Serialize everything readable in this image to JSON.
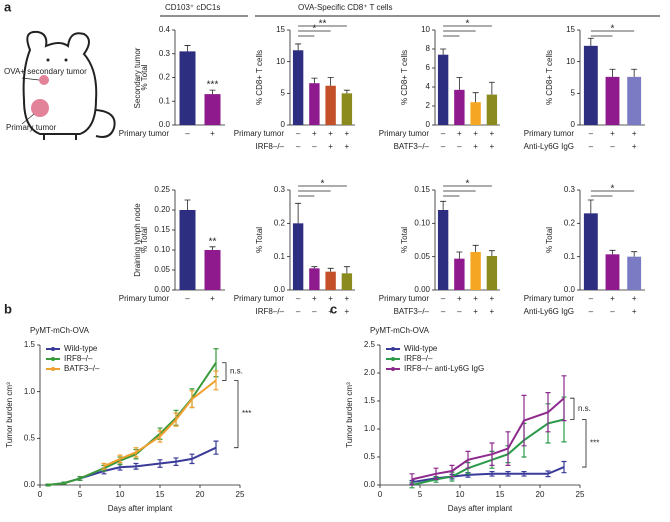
{
  "panel_labels": [
    "a",
    "b",
    "c"
  ],
  "headers": [
    "CD103⁺ cDC1s",
    "OVA-Specific CD8⁺ T cells"
  ],
  "row_labels": [
    "Secondary tumor",
    "Draining lymph node"
  ],
  "mouse": {
    "secondary": "OVA+ secondary tumor",
    "primary": "Primary tumor"
  },
  "chart_data": [
    {
      "type": "bar",
      "ylabel": "% Total",
      "ylim": [
        0,
        0.4
      ],
      "yticks": [
        {
          "value": 0,
          "label": "0.0"
        },
        0.1,
        0.2,
        0.3,
        0.4
      ],
      "values": [
        0.31,
        0.13
      ],
      "errors": [
        0.025,
        0.017
      ],
      "colors": [
        "#2e2e80",
        "#8e1a8e"
      ],
      "conditions": [
        {
          "label": "Primary tumor",
          "values": [
            "–",
            "+"
          ]
        }
      ],
      "significance": [
        "***"
      ]
    },
    {
      "type": "bar",
      "ylabel": "% CD8+ T cells",
      "ylim": [
        0,
        15
      ],
      "yticks": [
        0,
        5,
        10,
        15
      ],
      "values": [
        11.8,
        6.6,
        6.2,
        5.0
      ],
      "errors": [
        1.0,
        0.8,
        1.3,
        0.5
      ],
      "colors": [
        "#2e2e80",
        "#8e1a8e",
        "#c4502a",
        "#8a8a1e"
      ],
      "conditions": [
        {
          "label": "Primary tumor",
          "values": [
            "–",
            "+",
            "+",
            "+"
          ]
        },
        {
          "label": "IRF8–/–",
          "values": [
            "–",
            "–",
            "+",
            "+"
          ]
        }
      ],
      "significance": [
        "*",
        "**"
      ]
    },
    {
      "type": "bar",
      "ylabel": "% CD8+ T cells",
      "ylim": [
        0,
        10
      ],
      "yticks": [
        0,
        2,
        4,
        6,
        8,
        10
      ],
      "values": [
        7.4,
        3.7,
        2.4,
        3.2
      ],
      "errors": [
        0.6,
        1.3,
        1.0,
        1.3
      ],
      "colors": [
        "#2e2e80",
        "#8e1a8e",
        "#f5a623",
        "#8a8a1e"
      ],
      "conditions": [
        {
          "label": "Primary tumor",
          "values": [
            "–",
            "+",
            "+",
            "+"
          ]
        },
        {
          "label": "BATF3–/–",
          "values": [
            "–",
            "–",
            "+",
            "+"
          ]
        }
      ],
      "significance": [
        "*"
      ]
    },
    {
      "type": "bar",
      "ylabel": "% CD8+ T cells",
      "ylim": [
        0,
        15
      ],
      "yticks": [
        0,
        5,
        10,
        15
      ],
      "values": [
        12.5,
        7.6,
        7.6
      ],
      "errors": [
        1.2,
        1.2,
        1.2
      ],
      "colors": [
        "#2e2e80",
        "#8e1a8e",
        "#7b7bc4"
      ],
      "conditions": [
        {
          "label": "Primary tumor",
          "values": [
            "–",
            "+",
            "+"
          ]
        },
        {
          "label": "Anti-Ly6G IgG",
          "values": [
            "–",
            "–",
            "+"
          ]
        }
      ],
      "significance": [
        "*"
      ]
    },
    {
      "type": "bar",
      "ylabel": "% Total",
      "ylim": [
        0,
        0.25
      ],
      "yticks": [
        {
          "value": 0,
          "label": "0.00"
        },
        {
          "value": 0.05,
          "label": "0.05"
        },
        {
          "value": 0.1,
          "label": "0.10"
        },
        {
          "value": 0.15,
          "label": "0.15"
        },
        {
          "value": 0.2,
          "label": "0.20"
        },
        {
          "value": 0.25,
          "label": "0.25"
        }
      ],
      "values": [
        0.2,
        0.1
      ],
      "errors": [
        0.025,
        0.008
      ],
      "colors": [
        "#2e2e80",
        "#8e1a8e"
      ],
      "conditions": [
        {
          "label": "Primary tumor",
          "values": [
            "–",
            "+"
          ]
        }
      ],
      "significance": [
        "**"
      ]
    },
    {
      "type": "bar",
      "ylabel": "% Total",
      "ylim": [
        0,
        0.3
      ],
      "yticks": [
        {
          "value": 0,
          "label": "0.0"
        },
        0.1,
        0.2,
        0.3
      ],
      "values": [
        0.2,
        0.065,
        0.055,
        0.05
      ],
      "errors": [
        0.06,
        0.005,
        0.01,
        0.02
      ],
      "colors": [
        "#2e2e80",
        "#8e1a8e",
        "#c4502a",
        "#8a8a1e"
      ],
      "conditions": [
        {
          "label": "Primary tumor",
          "values": [
            "–",
            "+",
            "+",
            "+"
          ]
        },
        {
          "label": "IRF8–/–",
          "values": [
            "–",
            "–",
            "+",
            "+"
          ]
        }
      ],
      "significance": [
        "*"
      ]
    },
    {
      "type": "bar",
      "ylabel": "% Total",
      "ylim": [
        0,
        0.15
      ],
      "yticks": [
        {
          "value": 0,
          "label": "0.00"
        },
        {
          "value": 0.05,
          "label": "0.05"
        },
        {
          "value": 0.1,
          "label": "0.10"
        },
        {
          "value": 0.15,
          "label": "0.15"
        }
      ],
      "values": [
        0.12,
        0.047,
        0.057,
        0.051
      ],
      "errors": [
        0.013,
        0.01,
        0.01,
        0.008
      ],
      "colors": [
        "#2e2e80",
        "#8e1a8e",
        "#f5a623",
        "#8a8a1e"
      ],
      "conditions": [
        {
          "label": "Primary tumor",
          "values": [
            "–",
            "+",
            "+",
            "+"
          ]
        },
        {
          "label": "BATF3–/–",
          "values": [
            "–",
            "–",
            "+",
            "+"
          ]
        }
      ],
      "significance": [
        "*"
      ]
    },
    {
      "type": "bar",
      "ylabel": "% Total",
      "ylim": [
        0,
        0.3
      ],
      "yticks": [
        {
          "value": 0,
          "label": "0.0"
        },
        0.1,
        0.2,
        0.3
      ],
      "values": [
        0.23,
        0.107,
        0.1
      ],
      "errors": [
        0.04,
        0.012,
        0.015
      ],
      "colors": [
        "#2e2e80",
        "#8e1a8e",
        "#7b7bc4"
      ],
      "conditions": [
        {
          "label": "Primary tumor",
          "values": [
            "–",
            "+",
            "+"
          ]
        },
        {
          "label": "Anti-Ly6G IgG",
          "values": [
            "–",
            "–",
            "+"
          ]
        }
      ],
      "significance": [
        "*"
      ]
    },
    {
      "type": "line",
      "subtitle": "PyMT-mCh-OVA",
      "xlabel": "Days after implant",
      "ylabel": "Tumor burden cm³",
      "xlim": [
        0,
        25
      ],
      "xticks": [
        0,
        5,
        10,
        15,
        20,
        25
      ],
      "ylim": [
        0,
        1.5
      ],
      "yticks": [
        {
          "value": 0,
          "label": "0.0"
        },
        0.5,
        {
          "value": 1,
          "label": "1.0"
        },
        1.5
      ],
      "series": [
        {
          "name": "Wild-type",
          "color": "#3a3a9a",
          "x": [
            1,
            3,
            5,
            8,
            10,
            12,
            15,
            17,
            19,
            22
          ],
          "values": [
            0,
            0.02,
            0.07,
            0.15,
            0.19,
            0.2,
            0.23,
            0.25,
            0.28,
            0.4
          ],
          "errors": [
            0.01,
            0.01,
            0.02,
            0.03,
            0.03,
            0.03,
            0.04,
            0.04,
            0.05,
            0.07
          ]
        },
        {
          "name": "IRF8–/–",
          "color": "#3a9a3a",
          "x": [
            1,
            3,
            5,
            8,
            10,
            12,
            15,
            17,
            19,
            22
          ],
          "values": [
            0,
            0.02,
            0.07,
            0.18,
            0.26,
            0.33,
            0.55,
            0.72,
            0.93,
            1.31
          ],
          "errors": [
            0.01,
            0.01,
            0.02,
            0.03,
            0.04,
            0.05,
            0.06,
            0.08,
            0.1,
            0.15
          ]
        },
        {
          "name": "BATF3–/–",
          "color": "#f0a030",
          "x": [
            8,
            10,
            12,
            15,
            17,
            19,
            22
          ],
          "values": [
            0.2,
            0.28,
            0.35,
            0.52,
            0.7,
            0.92,
            1.12
          ],
          "errors": [
            0.03,
            0.04,
            0.05,
            0.06,
            0.07,
            0.09,
            0.1
          ]
        }
      ],
      "annotations": [
        "n.s.",
        "***"
      ]
    },
    {
      "type": "line",
      "subtitle": "PyMT-mCh-OVA",
      "xlabel": "Days after implant",
      "ylabel": "Tumor burden cm³",
      "xlim": [
        0,
        25
      ],
      "xticks": [
        0,
        5,
        10,
        15,
        20,
        25
      ],
      "ylim": [
        0,
        2.5
      ],
      "yticks": [
        {
          "value": 0,
          "label": "0.0"
        },
        0.5,
        {
          "value": 1,
          "label": "1.0"
        },
        1.5,
        {
          "value": 2,
          "label": "2.0"
        },
        2.5
      ],
      "series": [
        {
          "name": "Wild-type",
          "color": "#3a3a9a",
          "x": [
            4,
            7,
            9,
            11,
            14,
            16,
            18,
            21,
            23
          ],
          "values": [
            0.05,
            0.12,
            0.15,
            0.18,
            0.2,
            0.2,
            0.2,
            0.2,
            0.32
          ],
          "errors": [
            0.03,
            0.03,
            0.04,
            0.04,
            0.04,
            0.04,
            0.04,
            0.05,
            0.1
          ]
        },
        {
          "name": "IRF8–/–",
          "color": "#2a9a4a",
          "x": [
            4,
            7,
            9,
            11,
            14,
            16,
            18,
            21,
            23
          ],
          "values": [
            0,
            0.1,
            0.15,
            0.3,
            0.45,
            0.55,
            0.8,
            1.1,
            1.17
          ],
          "errors": [
            0.05,
            0.05,
            0.08,
            0.1,
            0.15,
            0.15,
            0.3,
            0.35,
            0.4
          ]
        },
        {
          "name": "IRF8–/– anti-Ly6G IgG",
          "color": "#8e2a8e",
          "x": [
            4,
            7,
            9,
            11,
            14,
            16,
            18,
            21,
            23
          ],
          "values": [
            0.1,
            0.2,
            0.25,
            0.45,
            0.55,
            0.65,
            1.15,
            1.3,
            1.55
          ],
          "errors": [
            0.1,
            0.1,
            0.1,
            0.15,
            0.2,
            0.3,
            0.45,
            0.35,
            0.4
          ]
        }
      ],
      "annotations": [
        "n.s.",
        "***"
      ]
    }
  ]
}
